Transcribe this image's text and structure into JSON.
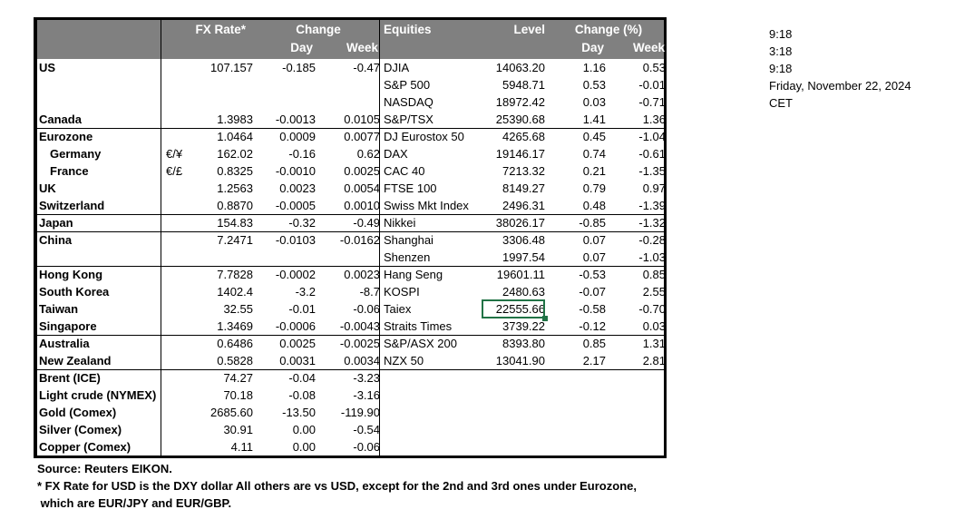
{
  "header": {
    "fx_rate": "FX Rate*",
    "change": "Change",
    "day": "Day",
    "week": "Week",
    "equities": "Equities",
    "level": "Level",
    "change_pct": "Change (%)",
    "eq_day": "Day",
    "eq_week": "Week"
  },
  "rows": [
    {
      "name": "US",
      "sym": "",
      "fx": "107.157",
      "fx_day": "-0.185",
      "fx_week": "-0.47",
      "eq": "DJIA",
      "level": "14063.20",
      "eq_day": "1.16",
      "eq_week": "0.53"
    },
    {
      "name": "",
      "sym": "",
      "fx": "",
      "fx_day": "",
      "fx_week": "",
      "eq": "S&P 500",
      "level": "5948.71",
      "eq_day": "0.53",
      "eq_week": "-0.01"
    },
    {
      "name": "",
      "sym": "",
      "fx": "",
      "fx_day": "",
      "fx_week": "",
      "eq": "NASDAQ",
      "level": "18972.42",
      "eq_day": "0.03",
      "eq_week": "-0.71"
    },
    {
      "name": "Canada",
      "sym": "",
      "fx": "1.3983",
      "fx_day": "-0.0013",
      "fx_week": "0.0105",
      "eq": "S&P/TSX",
      "level": "25390.68",
      "eq_day": "1.41",
      "eq_week": "1.36"
    },
    {
      "name": "Eurozone",
      "sym": "",
      "fx": "1.0464",
      "fx_day": "0.0009",
      "fx_week": "0.0077",
      "eq": "DJ Eurostox 50",
      "level": "4265.68",
      "eq_day": "0.45",
      "eq_week": "-1.04"
    },
    {
      "name": "Germany",
      "sym": "€/¥",
      "fx": "162.02",
      "fx_day": "-0.16",
      "fx_week": "0.62",
      "eq": "DAX",
      "level": "19146.17",
      "eq_day": "0.74",
      "eq_week": "-0.61"
    },
    {
      "name": "France",
      "sym": "€/£",
      "fx": "0.8325",
      "fx_day": "-0.0010",
      "fx_week": "0.0025",
      "eq": "CAC 40",
      "level": "7213.32",
      "eq_day": "0.21",
      "eq_week": "-1.35"
    },
    {
      "name": "UK",
      "sym": "",
      "fx": "1.2563",
      "fx_day": "0.0023",
      "fx_week": "0.0054",
      "eq": "FTSE 100",
      "level": "8149.27",
      "eq_day": "0.79",
      "eq_week": "0.97"
    },
    {
      "name": "Switzerland",
      "sym": "",
      "fx": "0.8870",
      "fx_day": "-0.0005",
      "fx_week": "0.0010",
      "eq": "Swiss Mkt Index",
      "level": "2496.31",
      "eq_day": "0.48",
      "eq_week": "-1.39"
    },
    {
      "name": "Japan",
      "sym": "",
      "fx": "154.83",
      "fx_day": "-0.32",
      "fx_week": "-0.49",
      "eq": "Nikkei",
      "level": "38026.17",
      "eq_day": "-0.85",
      "eq_week": "-1.32"
    },
    {
      "name": "China",
      "sym": "",
      "fx": "7.2471",
      "fx_day": "-0.0103",
      "fx_week": "-0.0162",
      "eq": "Shanghai",
      "level": "3306.48",
      "eq_day": "0.07",
      "eq_week": "-0.28"
    },
    {
      "name": "",
      "sym": "",
      "fx": "",
      "fx_day": "",
      "fx_week": "",
      "eq": "Shenzen",
      "level": "1997.54",
      "eq_day": "0.07",
      "eq_week": "-1.03"
    },
    {
      "name": "Hong Kong",
      "sym": "",
      "fx": "7.7828",
      "fx_day": "-0.0002",
      "fx_week": "0.0023",
      "eq": "Hang Seng",
      "level": "19601.11",
      "eq_day": "-0.53",
      "eq_week": "0.85"
    },
    {
      "name": "South Korea",
      "sym": "",
      "fx": "1402.4",
      "fx_day": "-3.2",
      "fx_week": "-8.7",
      "eq": "KOSPI",
      "level": "2480.63",
      "eq_day": "-0.07",
      "eq_week": "2.55"
    },
    {
      "name": "Taiwan",
      "sym": "",
      "fx": "32.55",
      "fx_day": "-0.01",
      "fx_week": "-0.06",
      "eq": "Taiex",
      "level": "22555.66",
      "eq_day": "-0.58",
      "eq_week": "-0.70"
    },
    {
      "name": "Singapore",
      "sym": "",
      "fx": "1.3469",
      "fx_day": "-0.0006",
      "fx_week": "-0.0043",
      "eq": "Straits Times",
      "level": "3739.22",
      "eq_day": "-0.12",
      "eq_week": "0.03"
    },
    {
      "name": "Australia",
      "sym": "",
      "fx": "0.6486",
      "fx_day": "0.0025",
      "fx_week": "-0.0025",
      "eq": "S&P/ASX  200",
      "level": "8393.80",
      "eq_day": "0.85",
      "eq_week": "1.31"
    },
    {
      "name": "New Zealand",
      "sym": "",
      "fx": "0.5828",
      "fx_day": "0.0031",
      "fx_week": "0.0034",
      "eq": "NZX 50",
      "level": "13041.90",
      "eq_day": "2.17",
      "eq_week": "2.81"
    },
    {
      "name": "Brent (ICE)",
      "sym": "",
      "fx": "74.27",
      "fx_day": "-0.04",
      "fx_week": "-3.23",
      "eq": "",
      "level": "",
      "eq_day": "",
      "eq_week": ""
    },
    {
      "name": "Light crude (NYMEX)",
      "sym": "",
      "fx": "70.18",
      "fx_day": "-0.08",
      "fx_week": "-3.16",
      "eq": "",
      "level": "",
      "eq_day": "",
      "eq_week": ""
    },
    {
      "name": "Gold (Comex)",
      "sym": "",
      "fx": "2685.60",
      "fx_day": "-13.50",
      "fx_week": "-119.90",
      "eq": "",
      "level": "",
      "eq_day": "",
      "eq_week": ""
    },
    {
      "name": "Silver (Comex)",
      "sym": "",
      "fx": "30.91",
      "fx_day": "0.00",
      "fx_week": "-0.54",
      "eq": "",
      "level": "",
      "eq_day": "",
      "eq_week": ""
    },
    {
      "name": "Copper (Comex)",
      "sym": "",
      "fx": "4.11",
      "fx_day": "0.00",
      "fx_week": "-0.06",
      "eq": "",
      "level": "",
      "eq_day": "",
      "eq_week": ""
    }
  ],
  "side": {
    "time1": "9:18",
    "time2": "3:18",
    "time3": "9:18",
    "date": "Friday, November 22, 2024",
    "tz": "CET"
  },
  "footer": {
    "source": "Source:  Reuters EIKON.",
    "note1": "* FX Rate for USD is the DXY dollar  All others are vs USD, except for the 2nd and 3rd ones under Eurozone,",
    "note2": " which are EUR/JPY and EUR/GBP."
  },
  "colors": {
    "header_bg": "#808080",
    "selection": "#217346"
  },
  "selected_cell": {
    "row": 14,
    "column": "level",
    "value": "22555.66"
  }
}
